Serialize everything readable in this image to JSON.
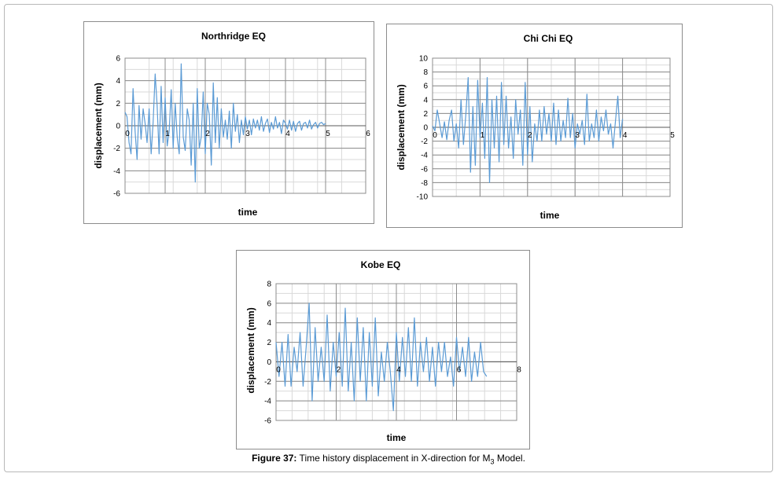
{
  "caption": {
    "label": "Figure 37:",
    "text_before": " Time history displacement in X-direction for M",
    "subscript": "3",
    "text_after": " Model."
  },
  "chart_data": [
    {
      "type": "line",
      "title": "Northridge EQ",
      "xlabel": "time",
      "ylabel": "displacement (mm)",
      "xlim": [
        0,
        6
      ],
      "ylim": [
        -6,
        6
      ],
      "xticks": [
        0,
        1,
        2,
        3,
        4,
        5,
        6
      ],
      "yticks": [
        -6,
        -4,
        -2,
        0,
        2,
        4,
        6
      ],
      "grid": true,
      "legend": "none",
      "color": "#5b9bd5",
      "series": [
        {
          "x": [
            0,
            0.05,
            0.1,
            0.15,
            0.2,
            0.25,
            0.3,
            0.35,
            0.4,
            0.45,
            0.5,
            0.55,
            0.6,
            0.65,
            0.7,
            0.75,
            0.8,
            0.85,
            0.9,
            0.95,
            1,
            1.05,
            1.1,
            1.15,
            1.2,
            1.25,
            1.3,
            1.35,
            1.4,
            1.45,
            1.5,
            1.55,
            1.6,
            1.65,
            1.7,
            1.75,
            1.8,
            1.85,
            1.9,
            1.95,
            2,
            2.05,
            2.1,
            2.15,
            2.2,
            2.25,
            2.3,
            2.35,
            2.4,
            2.45,
            2.5,
            2.55,
            2.6,
            2.65,
            2.7,
            2.75,
            2.8,
            2.85,
            2.9,
            2.95,
            3,
            3.05,
            3.1,
            3.15,
            3.2,
            3.25,
            3.3,
            3.35,
            3.4,
            3.45,
            3.5,
            3.55,
            3.6,
            3.65,
            3.7,
            3.75,
            3.8,
            3.85,
            3.9,
            3.95,
            4,
            4.05,
            4.1,
            4.15,
            4.2,
            4.25,
            4.3,
            4.35,
            4.4,
            4.45,
            4.5,
            4.55,
            4.6,
            4.65,
            4.7,
            4.75,
            4.8,
            4.85,
            4.9,
            4.95,
            5
          ],
          "y": [
            1.2,
            0.8,
            -1.5,
            -2.5,
            3.3,
            -0.5,
            -3.0,
            1.8,
            -1.2,
            1.5,
            0.2,
            -1.5,
            1.5,
            -2.5,
            0.3,
            4.6,
            1.8,
            -2.5,
            3.5,
            -1.5,
            2.5,
            -1.8,
            -0.5,
            3.2,
            -2.0,
            2.0,
            -1.0,
            -2.5,
            5.5,
            -1.0,
            -2.2,
            1.5,
            0.5,
            -3.5,
            2.0,
            -5.0,
            3.3,
            -2.0,
            -1.0,
            3.0,
            -2.5,
            2.0,
            1.0,
            -3.5,
            3.8,
            -1.5,
            2.5,
            -2.0,
            1.5,
            -1.0,
            0.5,
            -1.2,
            1.3,
            -2.0,
            2.0,
            -0.5,
            1.0,
            -1.5,
            0.5,
            -0.8,
            0.8,
            -0.3,
            0.5,
            -0.8,
            0.6,
            -0.2,
            0.5,
            -0.4,
            0.8,
            -0.5,
            0.2,
            0.6,
            -0.6,
            0.3,
            -0.3,
            0.8,
            -0.2,
            0.3,
            -0.7,
            0.5,
            0.2,
            -0.3,
            0.5,
            -0.4,
            0.4,
            -0.5,
            0.2,
            0.4,
            -0.4,
            0.2,
            0.3,
            -0.2,
            0.5,
            -0.3,
            0.1,
            0.3,
            -0.2,
            0.2,
            0.3,
            0.1,
            0.2
          ]
        }
      ]
    },
    {
      "type": "line",
      "title": "Chi Chi EQ",
      "xlabel": "time",
      "ylabel": "displacement (mm)",
      "xlim": [
        0,
        5
      ],
      "ylim": [
        -10,
        10
      ],
      "xticks": [
        0,
        1,
        2,
        3,
        4,
        5
      ],
      "yticks": [
        -10,
        -8,
        -6,
        -4,
        -2,
        0,
        2,
        4,
        6,
        8,
        10
      ],
      "grid": true,
      "legend": "none",
      "color": "#5b9bd5",
      "series": [
        {
          "x": [
            0,
            0.05,
            0.1,
            0.15,
            0.2,
            0.25,
            0.3,
            0.35,
            0.4,
            0.45,
            0.5,
            0.55,
            0.6,
            0.65,
            0.7,
            0.75,
            0.8,
            0.85,
            0.9,
            0.95,
            1,
            1.05,
            1.1,
            1.15,
            1.2,
            1.25,
            1.3,
            1.35,
            1.4,
            1.45,
            1.5,
            1.55,
            1.6,
            1.65,
            1.7,
            1.75,
            1.8,
            1.85,
            1.9,
            1.95,
            2,
            2.05,
            2.1,
            2.15,
            2.2,
            2.25,
            2.3,
            2.35,
            2.4,
            2.45,
            2.5,
            2.55,
            2.6,
            2.65,
            2.7,
            2.75,
            2.8,
            2.85,
            2.9,
            2.95,
            3,
            3.05,
            3.1,
            3.15,
            3.2,
            3.25,
            3.3,
            3.35,
            3.4,
            3.45,
            3.5,
            3.55,
            3.6,
            3.65,
            3.7,
            3.75,
            3.8,
            3.85,
            3.9,
            3.95,
            4
          ],
          "y": [
            0.2,
            -0.5,
            2.5,
            0.5,
            -1.5,
            0.8,
            -1.8,
            1.0,
            2.5,
            -2.0,
            0.5,
            -3.0,
            4.0,
            -2.5,
            1.8,
            7.2,
            -6.5,
            3.0,
            -5.5,
            6.8,
            -1.5,
            3.5,
            -4.5,
            7.2,
            -8.0,
            4.0,
            -3.0,
            4.5,
            -5.0,
            6.5,
            -2.5,
            4.5,
            -3.0,
            1.5,
            -4.5,
            4.0,
            -1.0,
            2.5,
            -5.5,
            6.5,
            -4.0,
            3.0,
            -5.0,
            0.5,
            -2.0,
            2.5,
            -2.0,
            3.0,
            -1.0,
            2.0,
            -2.0,
            3.5,
            -2.5,
            2.5,
            -2.0,
            1.0,
            -1.5,
            4.2,
            -1.5,
            2.0,
            -3.0,
            0.5,
            -1.0,
            1.0,
            -2.5,
            4.8,
            -2.0,
            0.5,
            -1.5,
            2.5,
            -2.0,
            1.5,
            -0.5,
            2.5,
            -1.0,
            0.5,
            -3.0,
            0.8,
            4.5,
            -1.5,
            1.2
          ]
        }
      ]
    },
    {
      "type": "line",
      "title": "Kobe EQ",
      "xlabel": "time",
      "ylabel": "displacement (mm)",
      "xlim": [
        0,
        8
      ],
      "ylim": [
        -6,
        8
      ],
      "xticks": [
        0,
        2,
        4,
        6,
        8
      ],
      "yticks": [
        -6,
        -4,
        -2,
        0,
        2,
        4,
        6,
        8
      ],
      "grid": true,
      "legend": "none",
      "color": "#5b9bd5",
      "series": [
        {
          "x": [
            0,
            0.1,
            0.2,
            0.3,
            0.4,
            0.5,
            0.6,
            0.7,
            0.8,
            0.9,
            1,
            1.1,
            1.2,
            1.3,
            1.4,
            1.5,
            1.6,
            1.7,
            1.8,
            1.9,
            2,
            2.1,
            2.2,
            2.3,
            2.4,
            2.5,
            2.6,
            2.7,
            2.8,
            2.9,
            3,
            3.1,
            3.2,
            3.3,
            3.4,
            3.5,
            3.6,
            3.7,
            3.8,
            3.9,
            4,
            4.1,
            4.2,
            4.3,
            4.4,
            4.5,
            4.6,
            4.7,
            4.8,
            4.9,
            5,
            5.1,
            5.2,
            5.3,
            5.4,
            5.5,
            5.6,
            5.7,
            5.8,
            5.9,
            6,
            6.1,
            6.2,
            6.3,
            6.4,
            6.5,
            6.6,
            6.7,
            6.8,
            6.9,
            7
          ],
          "y": [
            2.0,
            -1.5,
            2.0,
            -2.5,
            2.8,
            -2.5,
            1.5,
            -1.0,
            3.0,
            -2.5,
            1.5,
            6.0,
            -4.0,
            3.5,
            -2.0,
            1.5,
            -2.0,
            4.8,
            -3.0,
            2.0,
            -1.5,
            3.0,
            -2.5,
            5.5,
            -3.0,
            2.0,
            -4.0,
            4.5,
            -2.0,
            3.5,
            -4.0,
            3.0,
            -2.5,
            4.5,
            -3.5,
            1.0,
            -2.0,
            2.0,
            -1.0,
            -5.0,
            3.0,
            -2.0,
            2.5,
            -1.5,
            3.5,
            -2.0,
            4.5,
            -2.5,
            2.0,
            -1.0,
            2.5,
            -2.0,
            1.5,
            -2.5,
            2.0,
            -1.0,
            2.0,
            -1.5,
            0.5,
            -2.5,
            2.5,
            -1.0,
            1.5,
            -1.5,
            2.5,
            -2.0,
            1.0,
            -1.5,
            2.0,
            -1.0,
            -1.5
          ]
        }
      ]
    }
  ]
}
